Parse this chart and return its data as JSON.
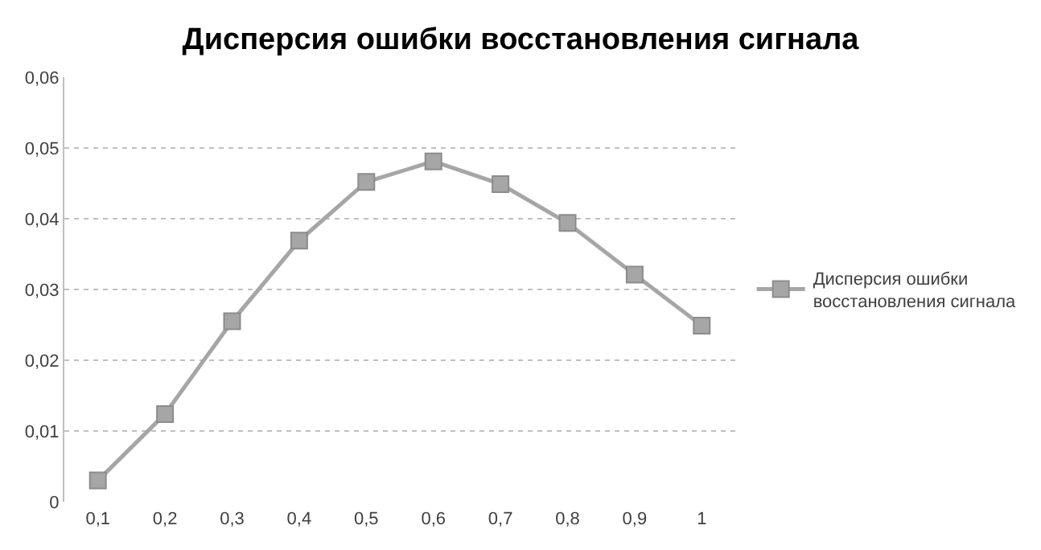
{
  "chart_data": {
    "type": "line",
    "title": "Дисперсия ошибки восстановления сигнала",
    "categories": [
      "0,1",
      "0,2",
      "0,3",
      "0,4",
      "0,5",
      "0,6",
      "0,7",
      "0,8",
      "0,9",
      "1"
    ],
    "series": [
      {
        "name": "Дисперсия ошибки восстановления сигнала",
        "color": "#a6a6a6",
        "values": [
          0.003,
          0.0124,
          0.0255,
          0.0369,
          0.0452,
          0.0481,
          0.0449,
          0.0394,
          0.0321,
          0.0249
        ]
      }
    ],
    "ylim": [
      0,
      0.06
    ],
    "yticks": [
      {
        "value": 0,
        "label": "0"
      },
      {
        "value": 0.01,
        "label": "0,01"
      },
      {
        "value": 0.02,
        "label": "0,02"
      },
      {
        "value": 0.03,
        "label": "0,03"
      },
      {
        "value": 0.04,
        "label": "0,04"
      },
      {
        "value": 0.05,
        "label": "0,05"
      },
      {
        "value": 0.06,
        "label": "0,06"
      }
    ],
    "grid": "y",
    "legend": "right",
    "marker": "square",
    "line_style": "solid"
  }
}
